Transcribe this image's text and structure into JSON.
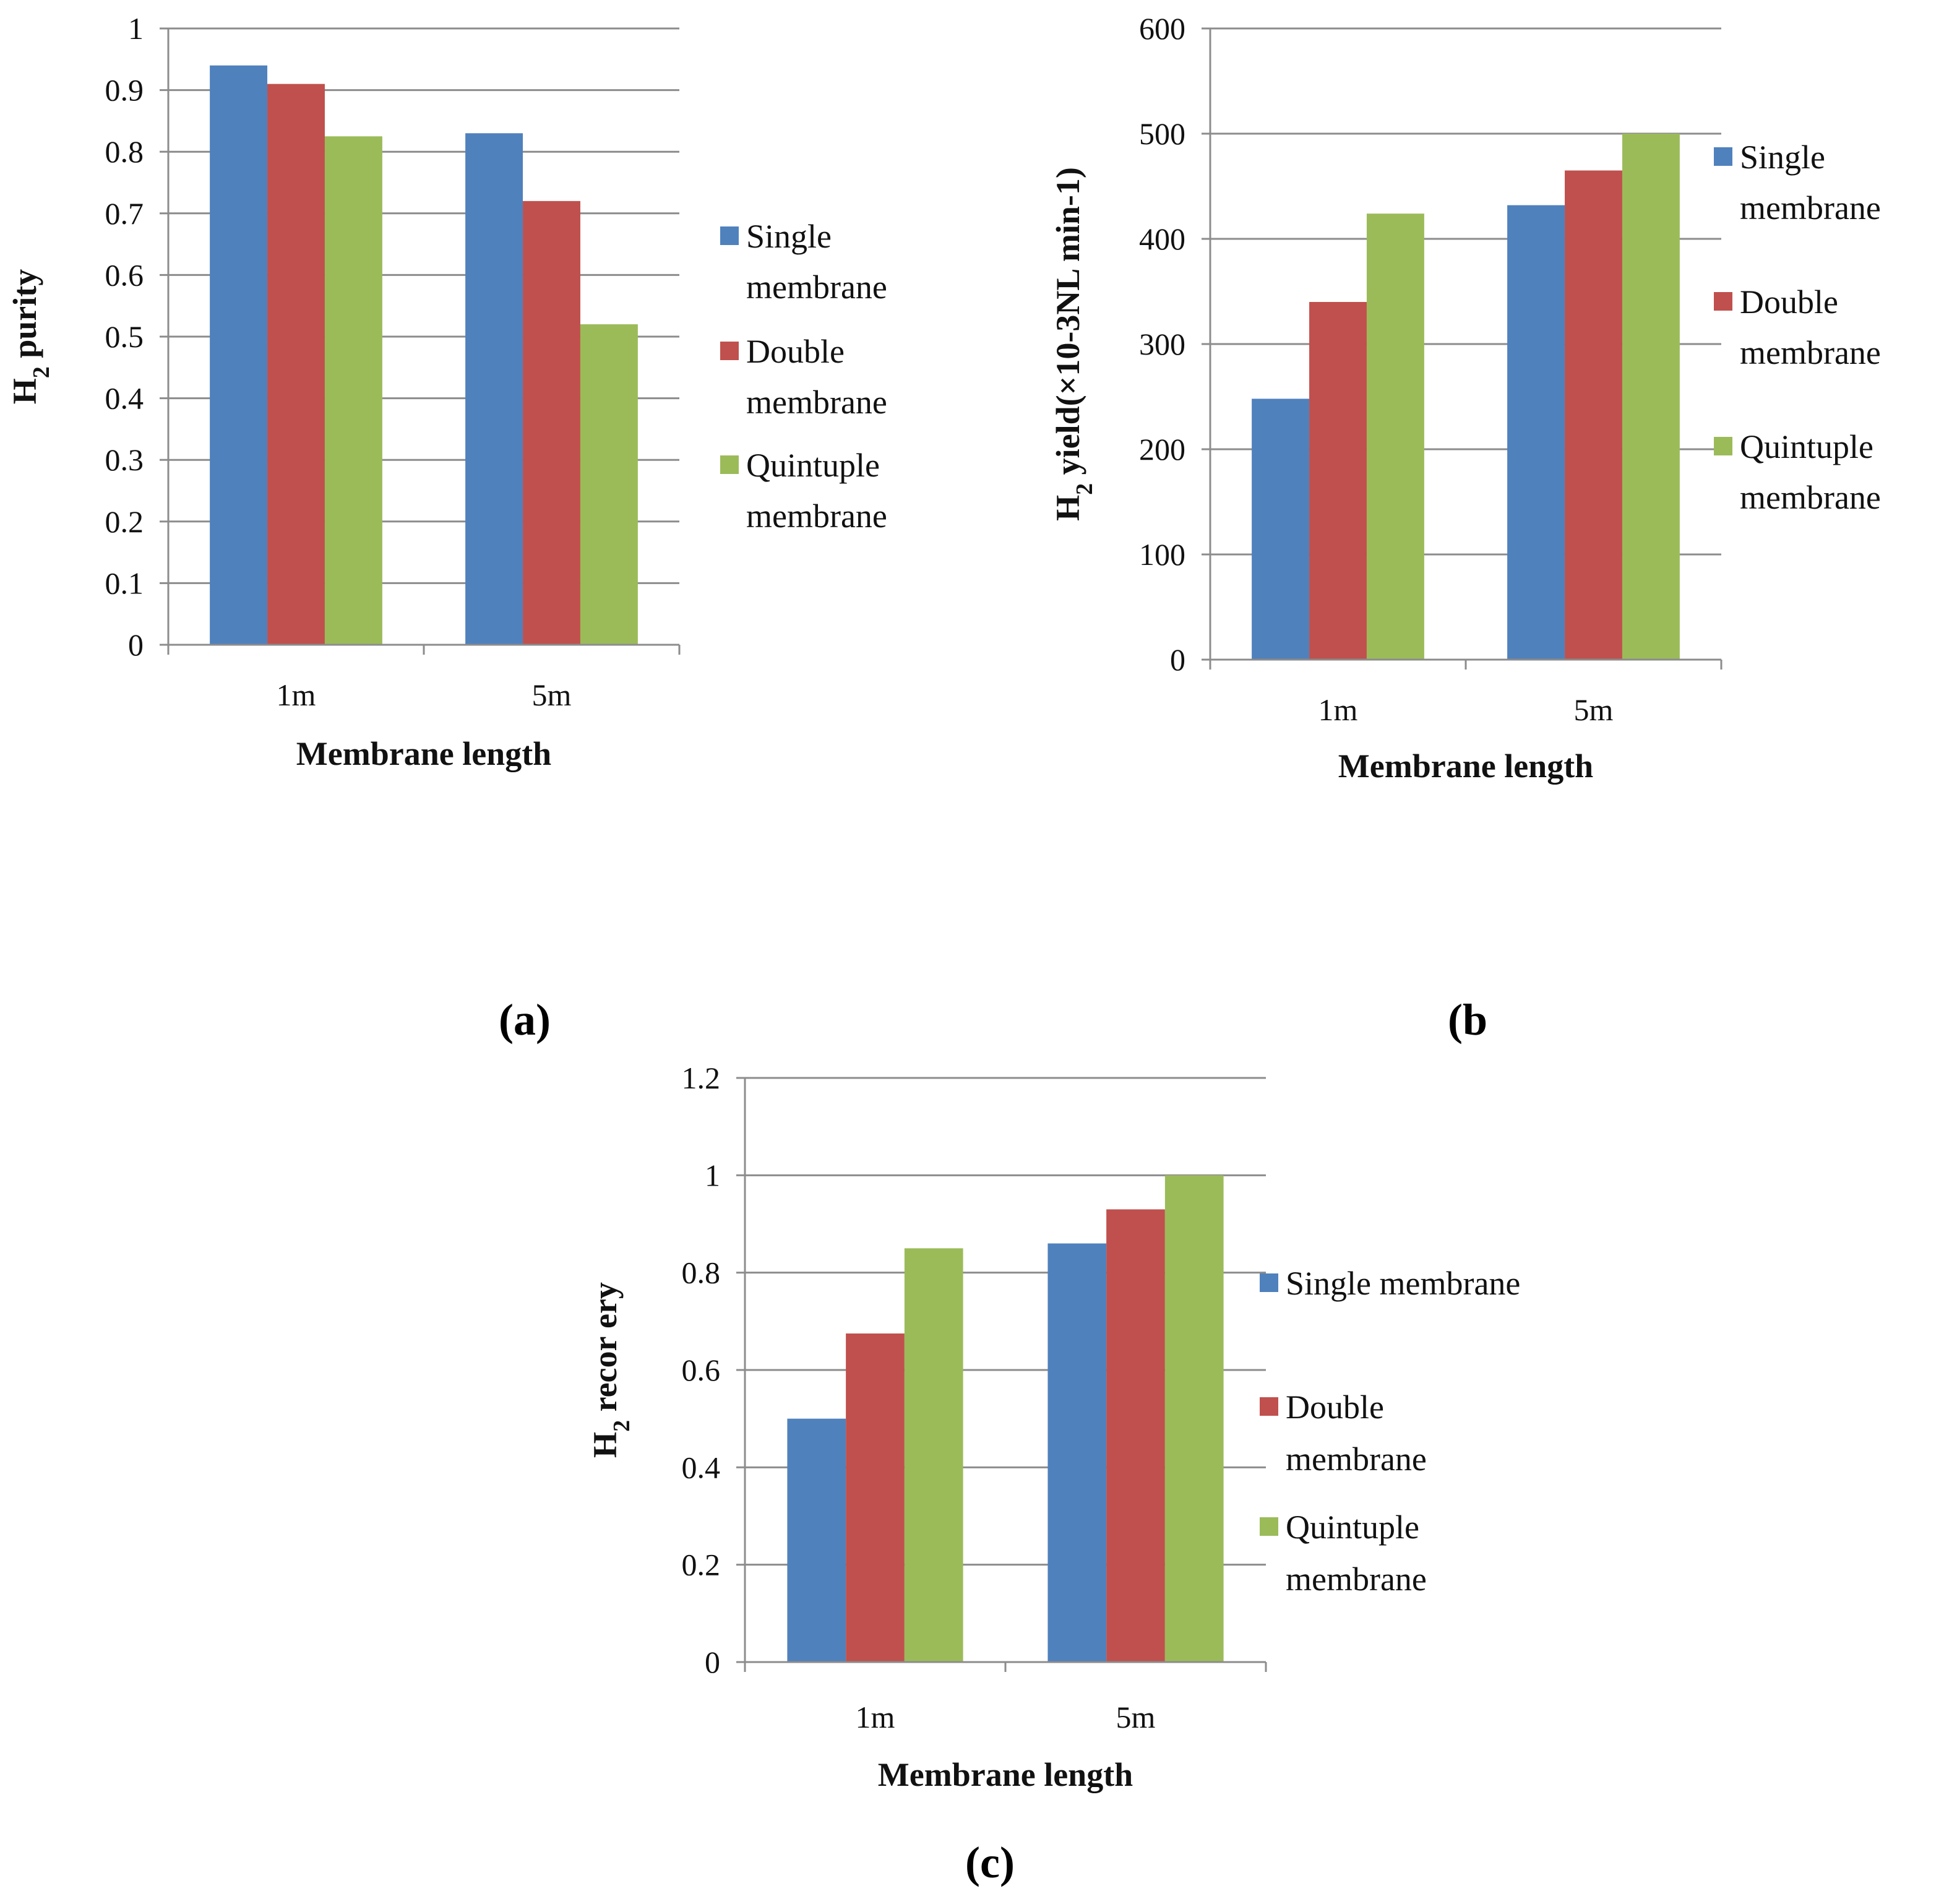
{
  "chart_data": [
    {
      "type": "bar",
      "panel": "(a)",
      "title": "",
      "xlabel": "Membrane length",
      "ylabel_main": "H",
      "ylabel_sub": "2",
      "ylabel_rest": " purity",
      "categories": [
        "1m",
        "5m"
      ],
      "series": [
        {
          "name_line1": "Single",
          "name_line2": "membrane",
          "color": "#4F81BD",
          "values": [
            0.94,
            0.83
          ]
        },
        {
          "name_line1": "Double",
          "name_line2": "membrane",
          "color": "#C0504D",
          "values": [
            0.91,
            0.72
          ]
        },
        {
          "name_line1": "Quintuple",
          "name_line2": "membrane",
          "color": "#9BBB59",
          "values": [
            0.825,
            0.52
          ]
        }
      ],
      "ylim": [
        0,
        1
      ],
      "yticks": [
        "0",
        "0.1",
        "0.2",
        "0.3",
        "0.4",
        "0.5",
        "0.6",
        "0.7",
        "0.8",
        "0.9",
        "1"
      ],
      "grid": true,
      "legend": "right"
    },
    {
      "type": "bar",
      "panel": "(b",
      "title": "",
      "xlabel": "Membrane length",
      "ylabel_main": "H",
      "ylabel_sub": "2",
      "ylabel_rest": " yield(×10-3NL min-1)",
      "categories": [
        "1m",
        "5m"
      ],
      "series": [
        {
          "name_line1": "Single",
          "name_line2": "membrane",
          "color": "#4F81BD",
          "values": [
            248,
            432
          ]
        },
        {
          "name_line1": "Double",
          "name_line2": "membrane",
          "color": "#C0504D",
          "values": [
            340,
            465
          ]
        },
        {
          "name_line1": "Quintuple",
          "name_line2": "membrane",
          "color": "#9BBB59",
          "values": [
            424,
            500
          ]
        }
      ],
      "ylim": [
        0,
        600
      ],
      "yticks": [
        "0",
        "100",
        "200",
        "300",
        "400",
        "500",
        "600"
      ],
      "grid": true,
      "legend": "right"
    },
    {
      "type": "bar",
      "panel": "(c)",
      "title": "",
      "xlabel": "Membrane length",
      "ylabel_main": "H",
      "ylabel_sub": "2",
      "ylabel_rest": " recor ery",
      "categories": [
        "1m",
        "5m"
      ],
      "series": [
        {
          "name_line1": "Single membrane",
          "name_line2": "",
          "color": "#4F81BD",
          "values": [
            0.5,
            0.86
          ]
        },
        {
          "name_line1": "Double",
          "name_line2": "membrane",
          "color": "#C0504D",
          "values": [
            0.675,
            0.93
          ]
        },
        {
          "name_line1": "Quintuple",
          "name_line2": "membrane",
          "color": "#9BBB59",
          "values": [
            0.85,
            1.0
          ]
        }
      ],
      "ylim": [
        0,
        1.2
      ],
      "yticks": [
        "0",
        "0.2",
        "0.4",
        "0.6",
        "0.8",
        "1",
        "1.2"
      ],
      "grid": true,
      "legend": "right"
    }
  ]
}
